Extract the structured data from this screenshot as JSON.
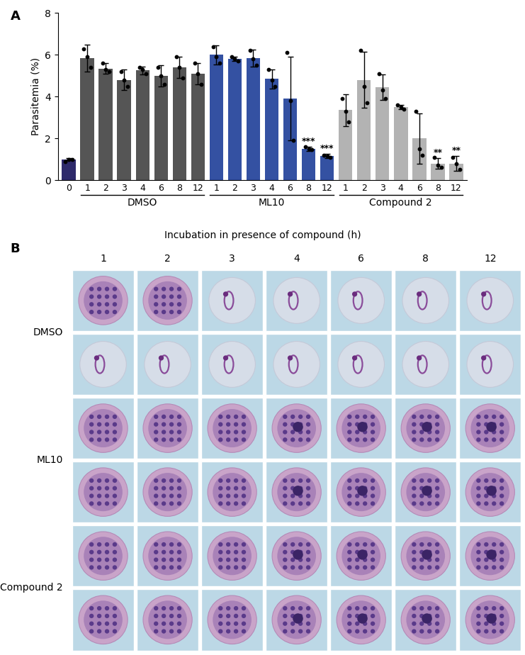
{
  "chart_data": {
    "type": "bar",
    "panel_label": "A",
    "y_label": "Parasitemia (%)",
    "x_label": "Incubation in presence of compound (h)",
    "categories": [
      "0",
      "1",
      "2",
      "3",
      "4",
      "6",
      "8",
      "12",
      "1",
      "2",
      "3",
      "4",
      "6",
      "8",
      "12",
      "1",
      "2",
      "3",
      "4",
      "6",
      "8",
      "12"
    ],
    "values": [
      1.0,
      5.85,
      5.35,
      4.8,
      5.25,
      5.0,
      5.4,
      5.1,
      6.0,
      5.8,
      5.85,
      4.85,
      3.9,
      1.5,
      1.15,
      3.35,
      4.8,
      4.45,
      3.5,
      2.0,
      0.8,
      0.8
    ],
    "errors": [
      0.05,
      0.65,
      0.25,
      0.5,
      0.2,
      0.5,
      0.5,
      0.5,
      0.45,
      0.1,
      0.4,
      0.45,
      2.0,
      0.1,
      0.1,
      0.75,
      1.35,
      0.6,
      0.1,
      1.2,
      0.25,
      0.35
    ],
    "points": [
      [
        0.9,
        1.0,
        1.0
      ],
      [
        6.3,
        5.9,
        5.4
      ],
      [
        5.6,
        5.3,
        5.2
      ],
      [
        5.2,
        4.8,
        4.5
      ],
      [
        5.4,
        5.3,
        5.1
      ],
      [
        5.4,
        5.0,
        4.6
      ],
      [
        5.9,
        5.4,
        4.9
      ],
      [
        5.6,
        5.1,
        4.6
      ],
      [
        6.4,
        5.9,
        5.6
      ],
      [
        5.9,
        5.8,
        5.7
      ],
      [
        6.2,
        5.8,
        5.5
      ],
      [
        5.3,
        4.8,
        4.5
      ],
      [
        6.1,
        3.8,
        1.9
      ],
      [
        1.6,
        1.5,
        1.45
      ],
      [
        1.2,
        1.15,
        1.1
      ],
      [
        3.9,
        3.3,
        2.8
      ],
      [
        6.2,
        4.5,
        3.7
      ],
      [
        5.1,
        4.3,
        3.9
      ],
      [
        3.6,
        3.5,
        3.4
      ],
      [
        3.3,
        1.5,
        1.2
      ],
      [
        1.1,
        0.7,
        0.6
      ],
      [
        1.1,
        0.8,
        0.5
      ]
    ],
    "colors": [
      "#2e2a6b",
      "#555555",
      "#555555",
      "#555555",
      "#555555",
      "#555555",
      "#555555",
      "#555555",
      "#3451a2",
      "#3451a2",
      "#3451a2",
      "#3451a2",
      "#3451a2",
      "#3451a2",
      "#3451a2",
      "#b3b3b3",
      "#b3b3b3",
      "#b3b3b3",
      "#b3b3b3",
      "#b3b3b3",
      "#b3b3b3",
      "#b3b3b3"
    ],
    "groups": [
      {
        "name": "DMSO",
        "first": 1,
        "last": 7
      },
      {
        "name": "ML10",
        "first": 8,
        "last": 14
      },
      {
        "name": "Compound 2",
        "first": 15,
        "last": 21
      }
    ],
    "annotations": [
      {
        "index": 13,
        "text": "***"
      },
      {
        "index": 14,
        "text": "***"
      },
      {
        "index": 20,
        "text": "**"
      },
      {
        "index": 21,
        "text": "**"
      }
    ],
    "ylim": [
      0,
      8
    ],
    "yticks": [
      0,
      2,
      4,
      6,
      8
    ]
  },
  "panel_b": {
    "label": "B",
    "columns": [
      "1",
      "2",
      "3",
      "4",
      "6",
      "8",
      "12"
    ],
    "rows": [
      "DMSO",
      "ML10",
      "Compound 2"
    ]
  }
}
